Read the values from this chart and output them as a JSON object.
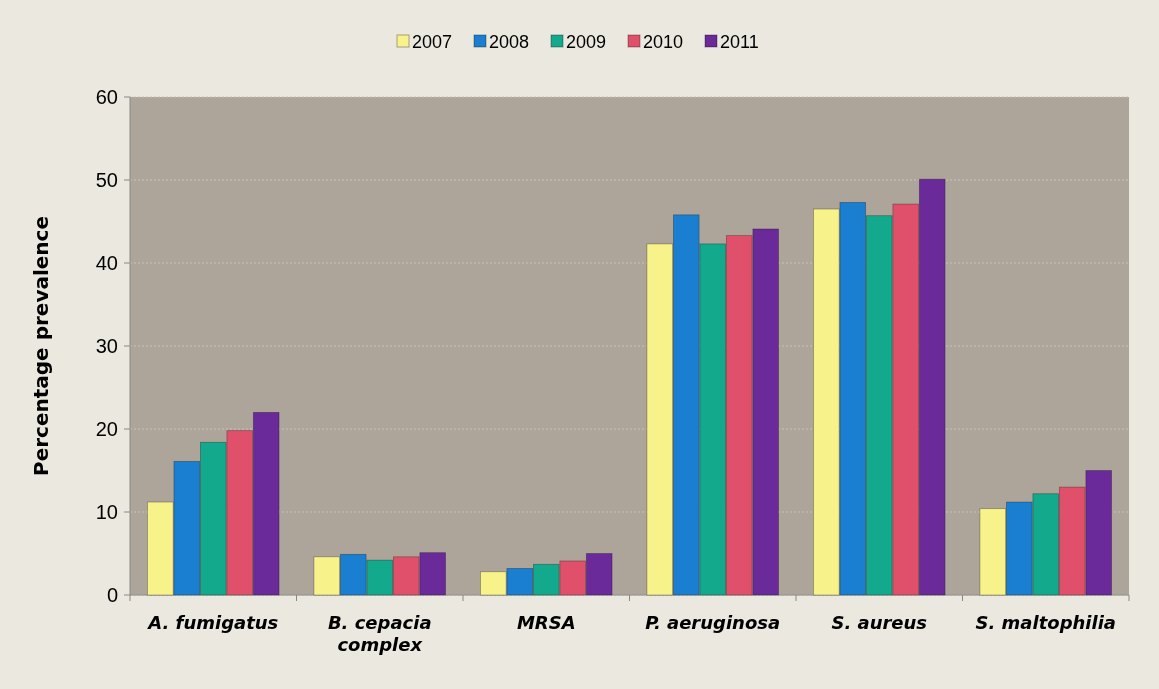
{
  "chart_data": {
    "type": "bar",
    "ylabel": "Percentage prevalence",
    "categories": [
      "A. fumigatus",
      "B. cepacia complex",
      "MRSA",
      "P. aeruginosa",
      "S. aureus",
      "S. maltophilia"
    ],
    "series": [
      {
        "name": "2007",
        "color": "#f8f28a",
        "values": [
          11.2,
          4.6,
          2.8,
          42.3,
          46.5,
          10.4
        ]
      },
      {
        "name": "2008",
        "color": "#1a7fd0",
        "values": [
          16.1,
          4.9,
          3.2,
          45.8,
          47.3,
          11.2
        ]
      },
      {
        "name": "2009",
        "color": "#13a98c",
        "values": [
          18.4,
          4.2,
          3.7,
          42.3,
          45.7,
          12.2
        ]
      },
      {
        "name": "2010",
        "color": "#e0506a",
        "values": [
          19.8,
          4.6,
          4.1,
          43.3,
          47.1,
          13.0
        ]
      },
      {
        "name": "2011",
        "color": "#6a2a9a",
        "values": [
          22.0,
          5.1,
          5.0,
          44.1,
          50.1,
          15.0
        ]
      }
    ],
    "ylim": [
      0,
      60
    ],
    "yticks": [
      0,
      10,
      20,
      30,
      40,
      50,
      60
    ],
    "grid": "y",
    "legend": "top"
  }
}
